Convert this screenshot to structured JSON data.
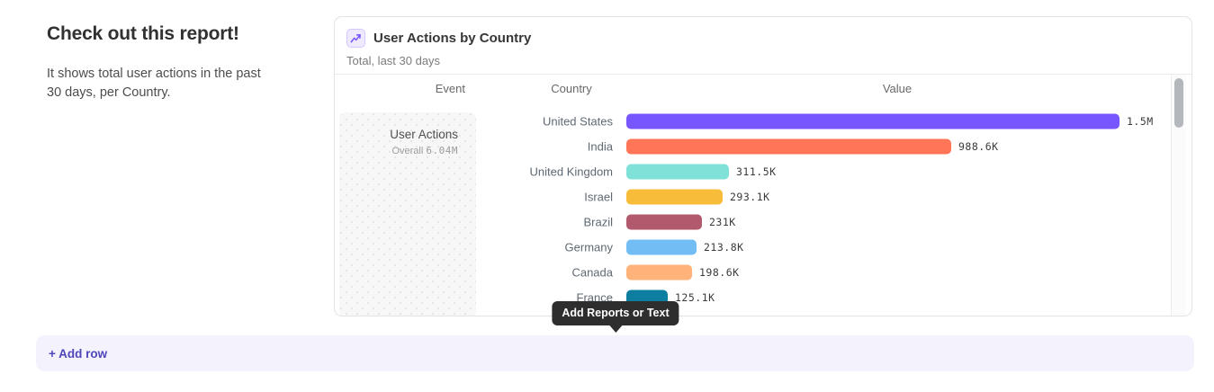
{
  "intro": {
    "heading": "Check out this report!",
    "description": "It shows total user actions in the past 30 days, per Country."
  },
  "card": {
    "title": "User Actions by Country",
    "subtitle": "Total, last 30 days",
    "icon": "line-chart-icon",
    "accent_color": "#7856ff"
  },
  "chart_data": {
    "type": "bar",
    "orientation": "horizontal",
    "title": "User Actions by Country",
    "subtitle": "Total, last 30 days",
    "columns": [
      "Event",
      "Country",
      "Value"
    ],
    "event": {
      "name": "User Actions",
      "overall_label": "Overall",
      "overall_value": "6.04M"
    },
    "categories": [
      "United States",
      "India",
      "United Kingdom",
      "Israel",
      "Brazil",
      "Germany",
      "Canada",
      "France"
    ],
    "values": [
      1500000,
      988600,
      311500,
      293100,
      231000,
      213800,
      198600,
      125100
    ],
    "value_labels": [
      "1.5M",
      "988.6K",
      "311.5K",
      "293.1K",
      "231K",
      "213.8K",
      "198.6K",
      "125.1K"
    ],
    "colors": [
      "#7856FF",
      "#FF7557",
      "#80E1D9",
      "#F8BC3B",
      "#B2596E",
      "#72BEF4",
      "#FFB27A",
      "#0D7EA0"
    ],
    "xlim": [
      0,
      1500000
    ],
    "legend": "none",
    "grid": false
  },
  "tooltip": {
    "label": "Add Reports or Text",
    "bg": "#2e2e2e"
  },
  "add_row": {
    "label": "+ Add row"
  }
}
